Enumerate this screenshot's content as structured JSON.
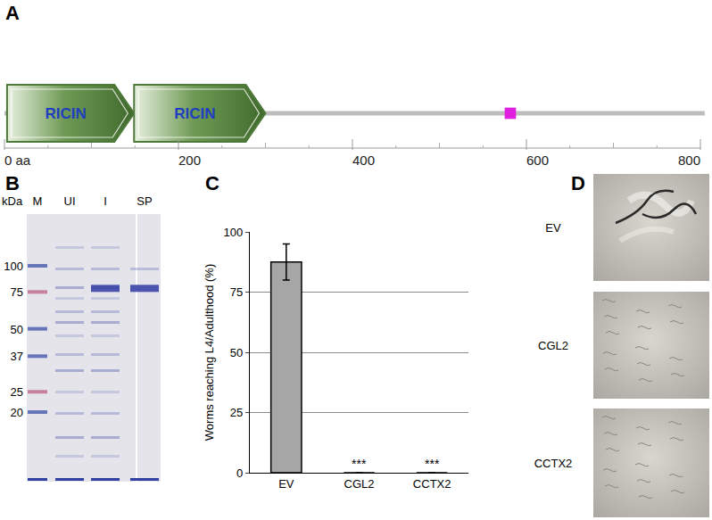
{
  "panel_labels": [
    "A",
    "B",
    "C",
    "D"
  ],
  "domain_diagram": {
    "length": 805,
    "domains": [
      {
        "label": "RICIN",
        "start": 3,
        "end": 149
      },
      {
        "label": "RICIN",
        "start": 149,
        "end": 300
      }
    ],
    "motifs": [
      {
        "start": 575,
        "end": 588,
        "color": "#e020e0"
      }
    ],
    "xlim": [
      0,
      800
    ],
    "xticks": [
      {
        "value": 0,
        "label": "0 aa"
      },
      200,
      400,
      600,
      800
    ]
  },
  "gel": {
    "unit_label": "kDa",
    "lanes": [
      "M",
      "UI",
      "I",
      "SP"
    ],
    "markers": [
      100,
      75,
      50,
      37,
      25,
      20
    ]
  },
  "chart_data": {
    "type": "bar",
    "categories": [
      "EV",
      "CGL2",
      "CCTX2"
    ],
    "values": [
      87.5,
      0,
      0
    ],
    "errors": [
      7.5,
      null,
      null
    ],
    "color": "#a6a6a6",
    "ylim": [
      0,
      100
    ],
    "yticks": [
      0,
      25,
      50,
      75,
      100
    ],
    "grid": true,
    "y_label": "Worms reaching L4/Adulthood (%)",
    "annotations": [
      {
        "category": "CGL2",
        "text": "***"
      },
      {
        "category": "CCTX2",
        "text": "***"
      }
    ]
  },
  "images": {
    "labels": [
      "EV",
      "CGL2",
      "CCTX2"
    ]
  }
}
